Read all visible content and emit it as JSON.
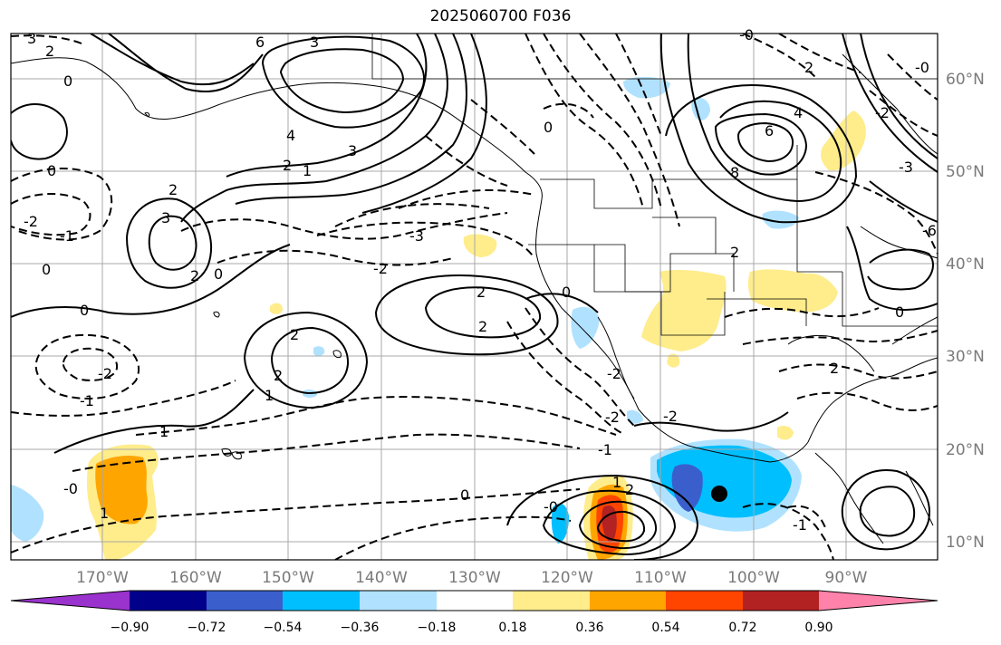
{
  "title": "2025060700 F036",
  "colors": {
    "neg_extreme": "#9a32cd",
    "neg_090": "#00008b",
    "neg_072": "#3a5fcd",
    "neg_054": "#00bfff",
    "neg_036": "#b0e2ff",
    "neutral": "#ffffff",
    "pos_018": "#ffec8b",
    "pos_036": "#ffa500",
    "pos_054": "#ff4500",
    "pos_072": "#b22222",
    "pos_extreme": "#ff82ab"
  },
  "lon_ticks": [
    "170°W",
    "160°W",
    "150°W",
    "140°W",
    "130°W",
    "120°W",
    "110°W",
    "100°W",
    "90°W"
  ],
  "lat_ticks": [
    "60°N",
    "50°N",
    "40°N",
    "30°N",
    "20°N",
    "10°N"
  ],
  "colorbar": {
    "ticks": [
      "−0.90",
      "−0.72",
      "−0.54",
      "−0.36",
      "−0.18",
      "0.18",
      "0.36",
      "0.54",
      "0.72",
      "0.90"
    ]
  },
  "contour_labels": [
    {
      "text": "3"
    },
    {
      "text": "2"
    },
    {
      "text": "0"
    },
    {
      "text": "6"
    },
    {
      "text": "3"
    },
    {
      "text": "4"
    },
    {
      "text": "3"
    },
    {
      "text": "2"
    },
    {
      "text": "1"
    },
    {
      "text": "2"
    },
    {
      "text": "3"
    },
    {
      "text": "2"
    },
    {
      "text": "0"
    },
    {
      "text": "0"
    },
    {
      "text": "-2"
    },
    {
      "text": "-1"
    },
    {
      "text": "0"
    },
    {
      "text": "0"
    },
    {
      "text": "-2"
    },
    {
      "text": "-1"
    },
    {
      "text": "2"
    },
    {
      "text": "2"
    },
    {
      "text": "1"
    },
    {
      "text": "1"
    },
    {
      "text": "-0"
    },
    {
      "text": "1"
    },
    {
      "text": "-3"
    },
    {
      "text": "-2"
    },
    {
      "text": "2"
    },
    {
      "text": "2"
    },
    {
      "text": "0"
    },
    {
      "text": "-2"
    },
    {
      "text": "-2"
    },
    {
      "text": "-1"
    },
    {
      "text": "0"
    },
    {
      "text": "-0"
    },
    {
      "text": "2"
    },
    {
      "text": "1"
    },
    {
      "text": "0"
    },
    {
      "text": "6"
    },
    {
      "text": "8"
    },
    {
      "text": "4"
    },
    {
      "text": "2"
    },
    {
      "text": "2"
    },
    {
      "text": "-0"
    },
    {
      "text": "-0"
    },
    {
      "text": "-2"
    },
    {
      "text": "0"
    },
    {
      "text": "-3"
    },
    {
      "text": "2"
    },
    {
      "text": "-2"
    },
    {
      "text": "-6"
    },
    {
      "text": "-1"
    }
  ]
}
